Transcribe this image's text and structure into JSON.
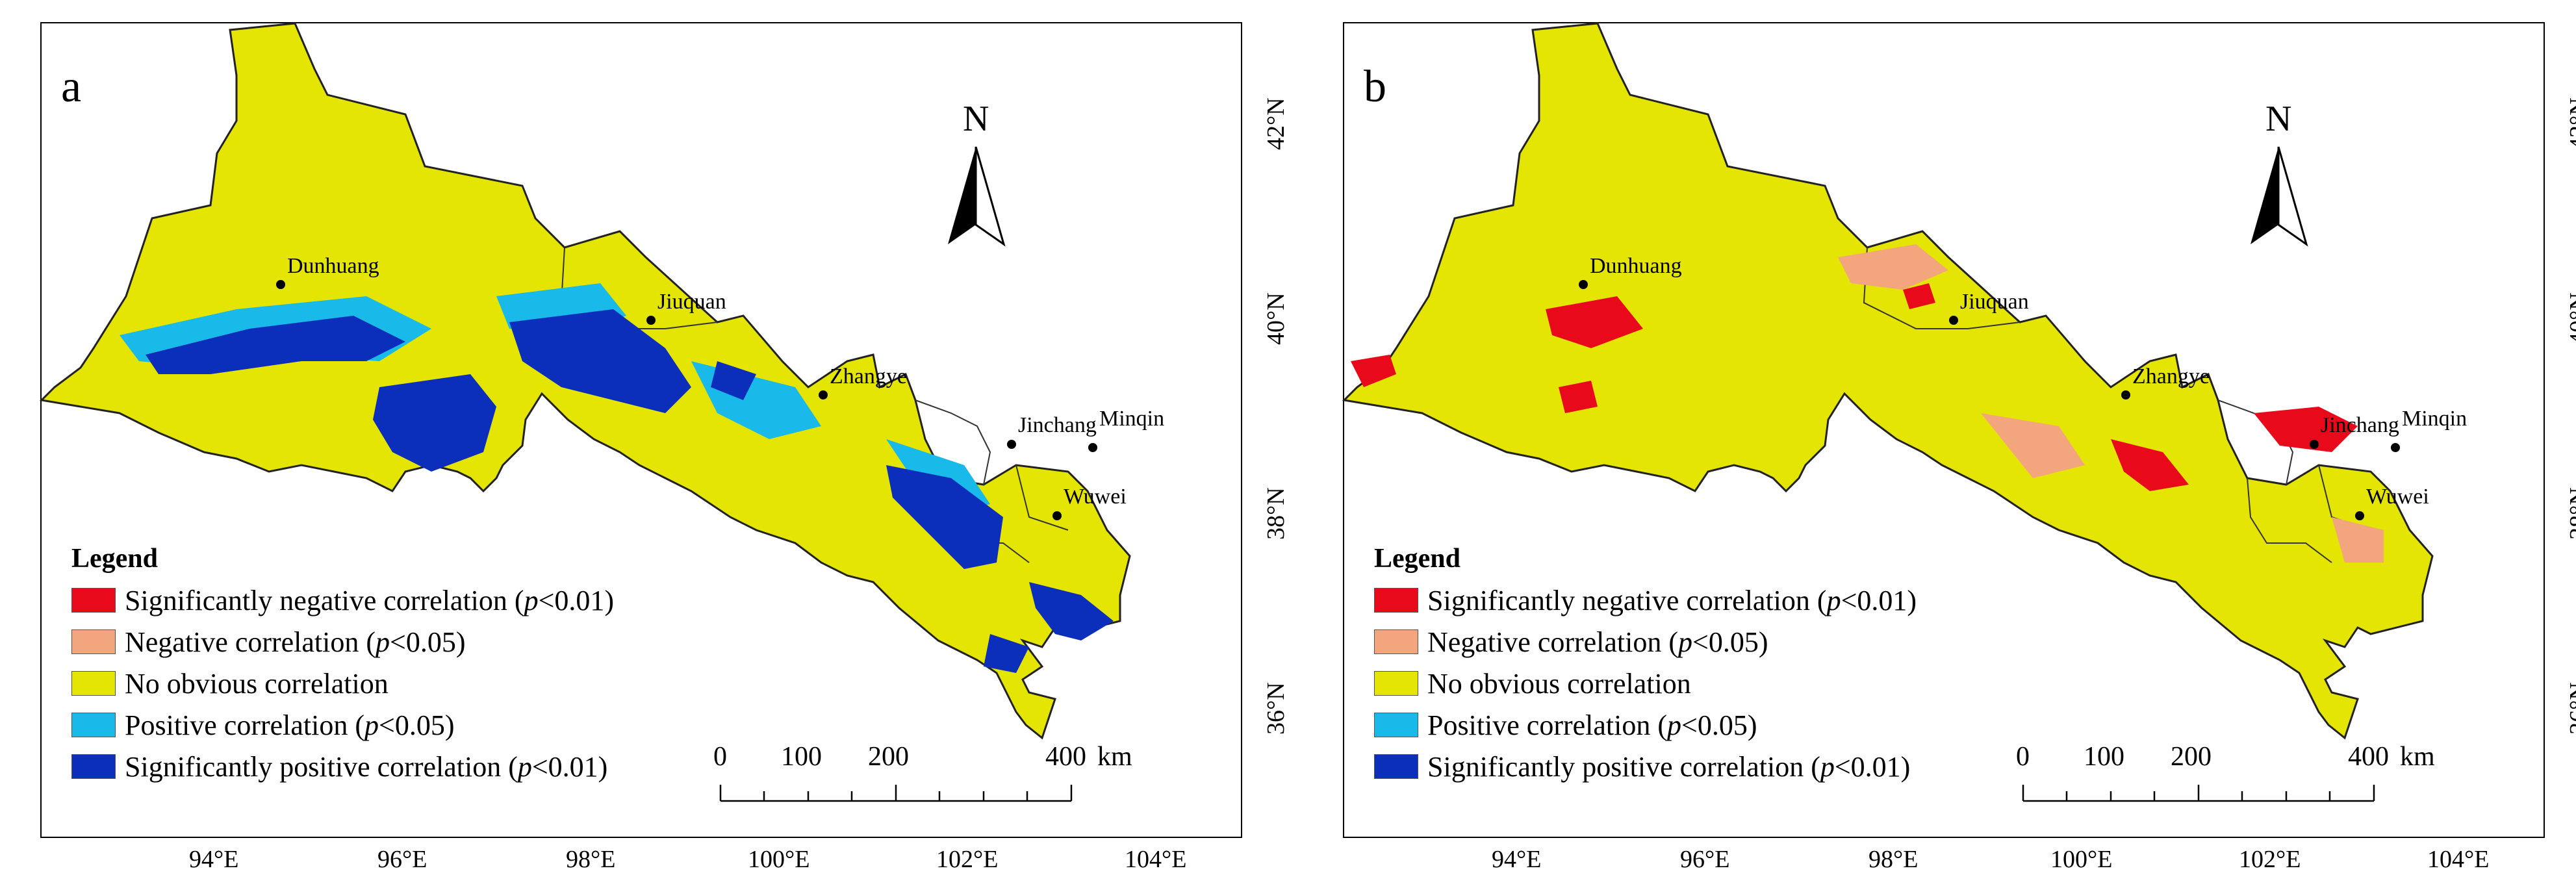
{
  "colors": {
    "significant_negative": "#e8091b",
    "negative": "#f3a57e",
    "no_correlation": "#e5e503",
    "positive": "#19b9e9",
    "significant_positive": "#0b2fba"
  },
  "axes": {
    "lon_ticks": [
      "94°E",
      "96°E",
      "98°E",
      "100°E",
      "102°E",
      "104°E"
    ],
    "lat_ticks": [
      "42°N",
      "40°N",
      "38°N",
      "36°N"
    ]
  },
  "legend": {
    "title": "Legend",
    "items": [
      {
        "prefix": "Significantly negative correlation (",
        "p": "p",
        "suffix": "<0.01)",
        "color_key": "significant_negative"
      },
      {
        "prefix": "Negative correlation (",
        "p": "p",
        "suffix": "<0.05)",
        "color_key": "negative"
      },
      {
        "prefix": "No obvious correlation",
        "p": "",
        "suffix": "",
        "color_key": "no_correlation"
      },
      {
        "prefix": "Positive correlation (",
        "p": "p",
        "suffix": "<0.05)",
        "color_key": "positive"
      },
      {
        "prefix": "Significantly positive correlation (",
        "p": "p",
        "suffix": "<0.01)",
        "color_key": "significant_positive"
      }
    ]
  },
  "scale_bar": {
    "n0": "0",
    "n100": "100",
    "n200": "200",
    "n400": "400",
    "unit": "km"
  },
  "north_arrow": "N",
  "cities": {
    "dunhuang": "Dunhuang",
    "jiuquan": "Jiuquan",
    "zhangye": "Zhangye",
    "jinchang": "Jinchang",
    "minqin": "Minqin",
    "wuwei": "Wuwei"
  },
  "panels": [
    {
      "letter": "a"
    },
    {
      "letter": "b"
    }
  ]
}
